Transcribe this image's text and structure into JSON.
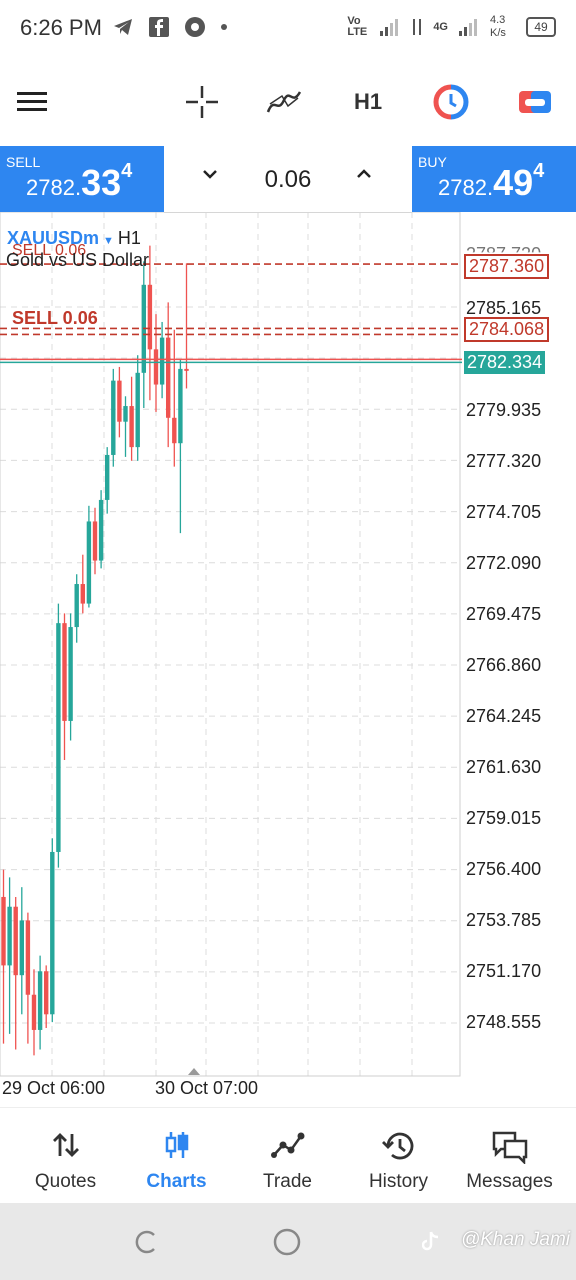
{
  "status": {
    "time": "6:26 PM",
    "network": "Vo LTE",
    "net_type": "4G",
    "speed": "4.3 K/s",
    "battery": "49"
  },
  "toolbar": {
    "timeframe": "H1"
  },
  "trade": {
    "sell_label": "SELL",
    "sell_price_prefix": "2782.",
    "sell_price_big": "33",
    "sell_price_sup": "4",
    "volume": "0.06",
    "buy_label": "BUY",
    "buy_price_prefix": "2782.",
    "buy_price_big": "49",
    "buy_price_sup": "4"
  },
  "chart": {
    "symbol": "XAUUSDm",
    "timeframe": "H1",
    "description": "Gold vs US Dollar",
    "order_label_1": "SELL 0.06",
    "order_label_2": "SELL 0.06",
    "top_cut_price": "2787.720",
    "price_labels": [
      "2785.165",
      "2779.935",
      "2777.320",
      "2774.705",
      "2772.090",
      "2769.475",
      "2766.860",
      "2764.245",
      "2761.630",
      "2759.015",
      "2756.400",
      "2753.785",
      "2751.170",
      "2748.555"
    ],
    "order_price_1": "2787.360",
    "order_price_2": "2784.068",
    "current_price": "2782.334",
    "x_labels": [
      "29 Oct 06:00",
      "30 Oct 07:00"
    ],
    "colors": {
      "bull": "#26a69a",
      "bear": "#ef5350",
      "order_line": "#c0392b",
      "accent": "#2e86f0"
    }
  },
  "chart_data": {
    "type": "candlestick",
    "symbol": "XAUUSDm",
    "timeframe": "H1",
    "y_range": [
      2747.0,
      2788.5
    ],
    "current_price": 2782.334,
    "order_lines": [
      2787.36,
      2784.068
    ],
    "candles": [
      {
        "o": 2755.0,
        "h": 2756.4,
        "c": 2751.5,
        "l": 2747.5
      },
      {
        "o": 2751.5,
        "h": 2756.0,
        "c": 2754.5,
        "l": 2748.0
      },
      {
        "o": 2754.5,
        "h": 2755.0,
        "c": 2751.0,
        "l": 2747.2
      },
      {
        "o": 2751.0,
        "h": 2755.5,
        "c": 2753.8,
        "l": 2749.0
      },
      {
        "o": 2753.8,
        "h": 2754.2,
        "c": 2750.0,
        "l": 2747.5
      },
      {
        "o": 2750.0,
        "h": 2751.3,
        "c": 2748.2,
        "l": 2746.9
      },
      {
        "o": 2748.2,
        "h": 2752.0,
        "c": 2751.2,
        "l": 2747.2
      },
      {
        "o": 2751.2,
        "h": 2751.5,
        "c": 2749.0,
        "l": 2748.3
      },
      {
        "o": 2749.0,
        "h": 2758.0,
        "c": 2757.3,
        "l": 2748.6
      },
      {
        "o": 2757.3,
        "h": 2770.0,
        "c": 2769.0,
        "l": 2756.5
      },
      {
        "o": 2769.0,
        "h": 2769.5,
        "c": 2764.0,
        "l": 2762.0
      },
      {
        "o": 2764.0,
        "h": 2769.5,
        "c": 2768.8,
        "l": 2763.0
      },
      {
        "o": 2768.8,
        "h": 2771.5,
        "c": 2771.0,
        "l": 2768.0
      },
      {
        "o": 2771.0,
        "h": 2772.5,
        "c": 2770.0,
        "l": 2769.5
      },
      {
        "o": 2770.0,
        "h": 2775.0,
        "c": 2774.2,
        "l": 2769.8
      },
      {
        "o": 2774.2,
        "h": 2774.9,
        "c": 2772.2,
        "l": 2771.5
      },
      {
        "o": 2772.2,
        "h": 2775.8,
        "c": 2775.3,
        "l": 2771.8
      },
      {
        "o": 2775.3,
        "h": 2778.0,
        "c": 2777.6,
        "l": 2774.6
      },
      {
        "o": 2777.6,
        "h": 2782.0,
        "c": 2781.4,
        "l": 2777.0
      },
      {
        "o": 2781.4,
        "h": 2782.1,
        "c": 2779.3,
        "l": 2778.5
      },
      {
        "o": 2779.3,
        "h": 2780.6,
        "c": 2780.1,
        "l": 2777.5
      },
      {
        "o": 2780.1,
        "h": 2781.6,
        "c": 2778.0,
        "l": 2777.3
      },
      {
        "o": 2778.0,
        "h": 2782.7,
        "c": 2781.8,
        "l": 2777.3
      },
      {
        "o": 2781.8,
        "h": 2787.5,
        "c": 2786.3,
        "l": 2780.0
      },
      {
        "o": 2786.3,
        "h": 2788.3,
        "c": 2783.0,
        "l": 2780.4
      },
      {
        "o": 2783.0,
        "h": 2784.8,
        "c": 2781.2,
        "l": 2779.8
      },
      {
        "o": 2781.2,
        "h": 2784.4,
        "c": 2783.6,
        "l": 2780.5
      },
      {
        "o": 2783.6,
        "h": 2785.4,
        "c": 2779.5,
        "l": 2778.0
      },
      {
        "o": 2779.5,
        "h": 2784.0,
        "c": 2778.2,
        "l": 2777.0
      },
      {
        "o": 2778.2,
        "h": 2782.5,
        "c": 2782.0,
        "l": 2773.6
      },
      {
        "o": 2782.0,
        "h": 2787.4,
        "c": 2781.9,
        "l": 2781.0
      }
    ]
  },
  "nav": {
    "items": [
      {
        "label": "Quotes",
        "icon": "quotes-icon"
      },
      {
        "label": "Charts",
        "icon": "charts-icon"
      },
      {
        "label": "Trade",
        "icon": "trade-icon"
      },
      {
        "label": "History",
        "icon": "history-icon"
      },
      {
        "label": "Messages",
        "icon": "messages-icon"
      }
    ]
  },
  "watermark": "@Khan Jami"
}
